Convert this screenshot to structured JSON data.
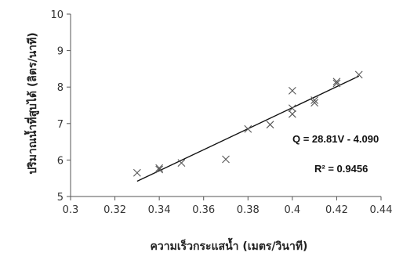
{
  "chart_data": {
    "type": "scatter",
    "title": "",
    "xlabel": "ความเร็วกระแสน้ำ (เมตร/วินาที)",
    "ylabel": "ปริมาณน้ำที่สูบได้ (ลิตร/นาที)",
    "xlim": [
      0.3,
      0.44
    ],
    "ylim": [
      5,
      10
    ],
    "x_ticks": [
      "0.3",
      "0.32",
      "0.34",
      "0.36",
      "0.38",
      "0.4",
      "0.42",
      "0.44"
    ],
    "y_ticks": [
      "5",
      "6",
      "7",
      "8",
      "9",
      "10"
    ],
    "marker": "x",
    "grid": false,
    "series": [
      {
        "points": [
          {
            "x": 0.33,
            "y": 5.65
          },
          {
            "x": 0.34,
            "y": 5.78
          },
          {
            "x": 0.34,
            "y": 5.74
          },
          {
            "x": 0.35,
            "y": 5.92
          },
          {
            "x": 0.37,
            "y": 6.02
          },
          {
            "x": 0.38,
            "y": 6.85
          },
          {
            "x": 0.39,
            "y": 6.97
          },
          {
            "x": 0.4,
            "y": 7.26
          },
          {
            "x": 0.4,
            "y": 7.42
          },
          {
            "x": 0.4,
            "y": 7.9
          },
          {
            "x": 0.41,
            "y": 7.57
          },
          {
            "x": 0.41,
            "y": 7.64
          },
          {
            "x": 0.42,
            "y": 8.1
          },
          {
            "x": 0.42,
            "y": 8.15
          },
          {
            "x": 0.43,
            "y": 8.34
          }
        ]
      }
    ],
    "trendline": {
      "slope": 28.81,
      "intercept": -4.09,
      "x_range": [
        0.33,
        0.43
      ]
    },
    "annotations": [
      {
        "text": "Q = 28.81V - 4.090"
      },
      {
        "text": "R² = 0.9456"
      }
    ]
  }
}
